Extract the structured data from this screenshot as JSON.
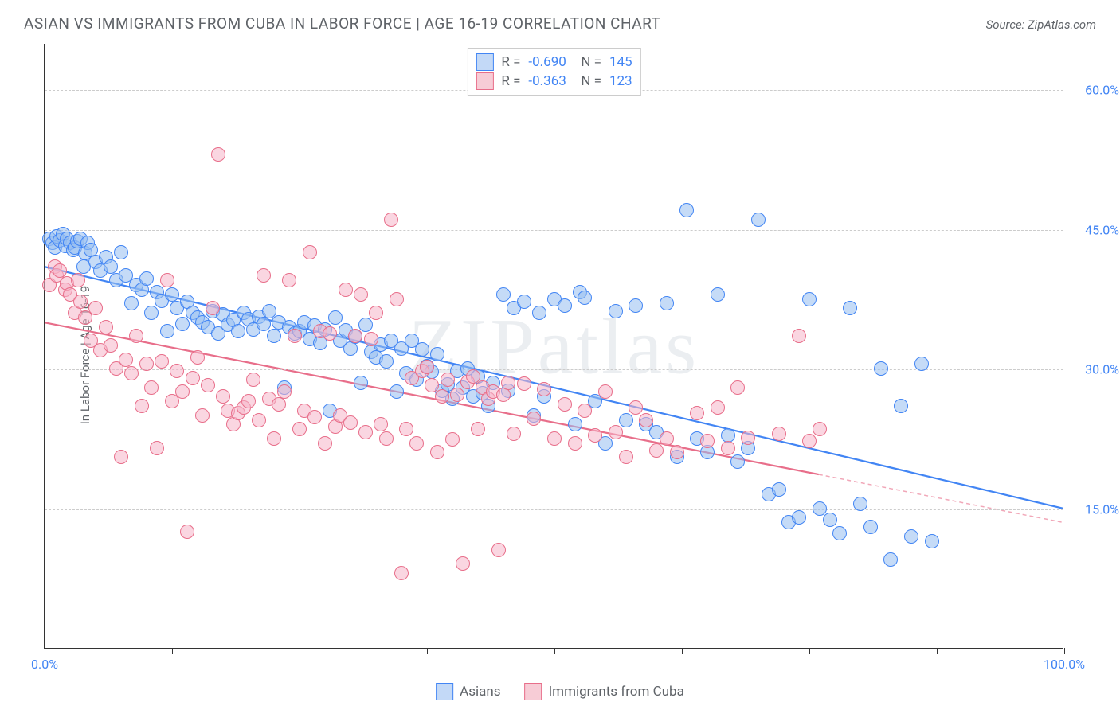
{
  "title": "ASIAN VS IMMIGRANTS FROM CUBA IN LABOR FORCE | AGE 16-19 CORRELATION CHART",
  "source": "Source: ZipAtlas.com",
  "y_axis_label": "In Labor Force | Age 16-19",
  "watermark": "ZIPatlas",
  "chart": {
    "type": "scatter",
    "background_color": "#ffffff",
    "grid_color": "#cccccc",
    "grid_dash": "4,3",
    "axis_color": "#333333",
    "xlim": [
      0,
      100
    ],
    "ylim": [
      0,
      65
    ],
    "x_ticks": [
      0,
      12.5,
      25,
      37.5,
      50,
      62.5,
      75,
      87.5,
      100
    ],
    "x_tick_labels": {
      "0": "0.0%",
      "100": "100.0%"
    },
    "y_ticks": [
      15,
      30,
      45,
      60
    ],
    "y_tick_labels": {
      "15": "15.0%",
      "30": "30.0%",
      "45": "45.0%",
      "60": "60.0%"
    },
    "tick_label_color": "#4285f4",
    "tick_label_fontsize": 16,
    "axis_label_color": "#5f6368",
    "axis_label_fontsize": 15,
    "point_radius": 9,
    "point_stroke_width": 1.2,
    "trend_line_width": 2.2
  },
  "series": [
    {
      "name": "Asians",
      "fill_color": "rgba(150,190,240,0.55)",
      "stroke_color": "#4285f4",
      "swatch_fill": "#c3d9f7",
      "swatch_border": "#4285f4",
      "R": "-0.690",
      "N": "145",
      "trend": {
        "x1": 0,
        "y1": 41,
        "x2": 100,
        "y2": 15,
        "solid_end_x": 100
      },
      "points": [
        [
          0.5,
          44
        ],
        [
          0.8,
          43.5
        ],
        [
          1,
          43
        ],
        [
          1.2,
          44.2
        ],
        [
          1.5,
          43.8
        ],
        [
          1.8,
          44.5
        ],
        [
          2,
          43.2
        ],
        [
          2.2,
          44
        ],
        [
          2.5,
          43.5
        ],
        [
          2.8,
          42.8
        ],
        [
          3,
          43
        ],
        [
          3.2,
          43.7
        ],
        [
          3.5,
          44
        ],
        [
          3.8,
          41
        ],
        [
          4,
          42.4
        ],
        [
          4.2,
          43.5
        ],
        [
          4.5,
          42.8
        ],
        [
          5,
          41.5
        ],
        [
          5.5,
          40.5
        ],
        [
          6,
          42
        ],
        [
          6.5,
          41
        ],
        [
          7,
          39.5
        ],
        [
          7.5,
          42.5
        ],
        [
          8,
          40
        ],
        [
          8.5,
          37
        ],
        [
          9,
          39
        ],
        [
          9.5,
          38.5
        ],
        [
          10,
          39.7
        ],
        [
          10.5,
          36
        ],
        [
          11,
          38.2
        ],
        [
          11.5,
          37.3
        ],
        [
          12,
          34
        ],
        [
          12.5,
          38
        ],
        [
          13,
          36.5
        ],
        [
          13.5,
          34.8
        ],
        [
          14,
          37.2
        ],
        [
          14.5,
          36
        ],
        [
          15,
          35.5
        ],
        [
          15.5,
          35
        ],
        [
          16,
          34.5
        ],
        [
          16.5,
          36.2
        ],
        [
          17,
          33.8
        ],
        [
          17.5,
          35.8
        ],
        [
          18,
          34.7
        ],
        [
          18.5,
          35.2
        ],
        [
          19,
          34
        ],
        [
          19.5,
          36
        ],
        [
          20,
          35.3
        ],
        [
          20.5,
          34.2
        ],
        [
          21,
          35.6
        ],
        [
          21.5,
          34.8
        ],
        [
          22,
          36.2
        ],
        [
          22.5,
          33.5
        ],
        [
          23,
          35
        ],
        [
          23.5,
          28
        ],
        [
          24,
          34.5
        ],
        [
          24.5,
          33.8
        ],
        [
          25,
          34
        ],
        [
          25.5,
          35
        ],
        [
          26,
          33.2
        ],
        [
          26.5,
          34.6
        ],
        [
          27,
          32.8
        ],
        [
          27.5,
          34.2
        ],
        [
          28,
          25.5
        ],
        [
          28.5,
          35.5
        ],
        [
          29,
          33
        ],
        [
          29.5,
          34.1
        ],
        [
          30,
          32.2
        ],
        [
          30.5,
          33.4
        ],
        [
          31,
          28.5
        ],
        [
          31.5,
          34.7
        ],
        [
          32,
          31.8
        ],
        [
          32.5,
          31.2
        ],
        [
          33,
          32.6
        ],
        [
          33.5,
          30.8
        ],
        [
          34,
          33
        ],
        [
          34.5,
          27.5
        ],
        [
          35,
          32.2
        ],
        [
          35.5,
          29.5
        ],
        [
          36,
          33
        ],
        [
          36.5,
          28.8
        ],
        [
          37,
          32.1
        ],
        [
          37.5,
          30.3
        ],
        [
          38,
          29.7
        ],
        [
          38.5,
          31.6
        ],
        [
          39,
          27.6
        ],
        [
          39.5,
          28.3
        ],
        [
          40,
          26.8
        ],
        [
          40.5,
          29.8
        ],
        [
          41,
          28
        ],
        [
          41.5,
          30
        ],
        [
          42,
          27
        ],
        [
          42.5,
          29.2
        ],
        [
          43,
          27.4
        ],
        [
          43.5,
          26
        ],
        [
          44,
          28.5
        ],
        [
          45,
          38
        ],
        [
          45.5,
          27.6
        ],
        [
          46,
          36.5
        ],
        [
          47,
          37.2
        ],
        [
          48,
          25
        ],
        [
          48.5,
          36
        ],
        [
          49,
          27
        ],
        [
          50,
          37.5
        ],
        [
          51,
          36.8
        ],
        [
          52,
          24
        ],
        [
          52.5,
          38.2
        ],
        [
          53,
          37.6
        ],
        [
          54,
          26.5
        ],
        [
          55,
          22
        ],
        [
          56,
          36.2
        ],
        [
          57,
          24.5
        ],
        [
          58,
          36.8
        ],
        [
          59,
          24
        ],
        [
          60,
          23.2
        ],
        [
          61,
          37
        ],
        [
          62,
          20.5
        ],
        [
          63,
          47
        ],
        [
          64,
          22.5
        ],
        [
          65,
          21
        ],
        [
          66,
          38
        ],
        [
          67,
          22.8
        ],
        [
          68,
          20
        ],
        [
          69,
          21.5
        ],
        [
          70,
          46
        ],
        [
          71,
          16.5
        ],
        [
          72,
          17
        ],
        [
          73,
          13.5
        ],
        [
          74,
          14
        ],
        [
          75,
          37.5
        ],
        [
          76,
          15
        ],
        [
          77,
          13.8
        ],
        [
          78,
          12.3
        ],
        [
          79,
          36.5
        ],
        [
          80,
          15.5
        ],
        [
          81,
          13
        ],
        [
          82,
          30
        ],
        [
          83,
          9.5
        ],
        [
          84,
          26
        ],
        [
          85,
          12
        ],
        [
          86,
          30.5
        ],
        [
          87,
          11.5
        ]
      ]
    },
    {
      "name": "Immigrants from Cuba",
      "fill_color": "rgba(245,180,200,0.55)",
      "stroke_color": "#e86e8a",
      "swatch_fill": "#f7ccd6",
      "swatch_border": "#e86e8a",
      "R": "-0.363",
      "N": "123",
      "trend": {
        "x1": 0,
        "y1": 35,
        "x2": 100,
        "y2": 13.5,
        "solid_end_x": 76
      },
      "points": [
        [
          0.5,
          39
        ],
        [
          1,
          41
        ],
        [
          1.2,
          40
        ],
        [
          1.5,
          40.5
        ],
        [
          2,
          38.5
        ],
        [
          2.2,
          39.2
        ],
        [
          2.5,
          38
        ],
        [
          3,
          36
        ],
        [
          3.3,
          39.5
        ],
        [
          3.5,
          37.2
        ],
        [
          4,
          35.5
        ],
        [
          4.5,
          33
        ],
        [
          5,
          36.5
        ],
        [
          5.5,
          32
        ],
        [
          6,
          34.5
        ],
        [
          6.5,
          32.5
        ],
        [
          7,
          30
        ],
        [
          7.5,
          20.5
        ],
        [
          8,
          31
        ],
        [
          8.5,
          29.5
        ],
        [
          9,
          33.5
        ],
        [
          9.5,
          26
        ],
        [
          10,
          30.5
        ],
        [
          10.5,
          28
        ],
        [
          11,
          21.5
        ],
        [
          11.5,
          30.8
        ],
        [
          12,
          39.5
        ],
        [
          12.5,
          26.5
        ],
        [
          13,
          29.8
        ],
        [
          13.5,
          27.5
        ],
        [
          14,
          12.5
        ],
        [
          14.5,
          29
        ],
        [
          15,
          31.2
        ],
        [
          15.5,
          25
        ],
        [
          16,
          28.2
        ],
        [
          16.5,
          36.5
        ],
        [
          17,
          53
        ],
        [
          17.5,
          27
        ],
        [
          18,
          25.5
        ],
        [
          18.5,
          24
        ],
        [
          19,
          25.2
        ],
        [
          19.5,
          25.8
        ],
        [
          20,
          26.5
        ],
        [
          20.5,
          28.8
        ],
        [
          21,
          24.5
        ],
        [
          21.5,
          40
        ],
        [
          22,
          26.8
        ],
        [
          22.5,
          22.5
        ],
        [
          23,
          26.2
        ],
        [
          23.5,
          27.5
        ],
        [
          24,
          39.5
        ],
        [
          24.5,
          33.5
        ],
        [
          25,
          23.5
        ],
        [
          25.5,
          25.5
        ],
        [
          26,
          42.5
        ],
        [
          26.5,
          24.8
        ],
        [
          27,
          34
        ],
        [
          27.5,
          22
        ],
        [
          28,
          33.8
        ],
        [
          28.5,
          23.8
        ],
        [
          29,
          25
        ],
        [
          29.5,
          38.5
        ],
        [
          30,
          24.2
        ],
        [
          30.5,
          33.5
        ],
        [
          31,
          38
        ],
        [
          31.5,
          23.2
        ],
        [
          32,
          33.2
        ],
        [
          32.5,
          36
        ],
        [
          33,
          24
        ],
        [
          33.5,
          22.5
        ],
        [
          34,
          46
        ],
        [
          34.5,
          37.5
        ],
        [
          35,
          8
        ],
        [
          35.5,
          23.5
        ],
        [
          36,
          29
        ],
        [
          36.5,
          22
        ],
        [
          37,
          29.8
        ],
        [
          37.5,
          30.2
        ],
        [
          38,
          28.2
        ],
        [
          38.5,
          21
        ],
        [
          39,
          27
        ],
        [
          39.5,
          28.8
        ],
        [
          40,
          22.4
        ],
        [
          40.5,
          27.2
        ],
        [
          41,
          9.1
        ],
        [
          41.5,
          28.6
        ],
        [
          42,
          29.2
        ],
        [
          42.5,
          23.5
        ],
        [
          43,
          28
        ],
        [
          43.5,
          26.8
        ],
        [
          44,
          27.5
        ],
        [
          44.5,
          10.5
        ],
        [
          45,
          27.2
        ],
        [
          45.5,
          28.5
        ],
        [
          46,
          23
        ],
        [
          47,
          28.4
        ],
        [
          48,
          24.6
        ],
        [
          49,
          27.8
        ],
        [
          50,
          22.5
        ],
        [
          51,
          26.2
        ],
        [
          52,
          22
        ],
        [
          53,
          25.5
        ],
        [
          54,
          22.8
        ],
        [
          55,
          27.5
        ],
        [
          56,
          23.2
        ],
        [
          57,
          20.5
        ],
        [
          58,
          25.8
        ],
        [
          59,
          24.5
        ],
        [
          60,
          21.2
        ],
        [
          61,
          22.5
        ],
        [
          62,
          21
        ],
        [
          64,
          25.2
        ],
        [
          65,
          22.2
        ],
        [
          66,
          25.8
        ],
        [
          67,
          21.5
        ],
        [
          68,
          28
        ],
        [
          69,
          22.6
        ],
        [
          72,
          23
        ],
        [
          74,
          33.5
        ],
        [
          75,
          22.2
        ],
        [
          76,
          23.5
        ]
      ]
    }
  ],
  "legend": {
    "items": [
      "Asians",
      "Immigrants from Cuba"
    ]
  }
}
